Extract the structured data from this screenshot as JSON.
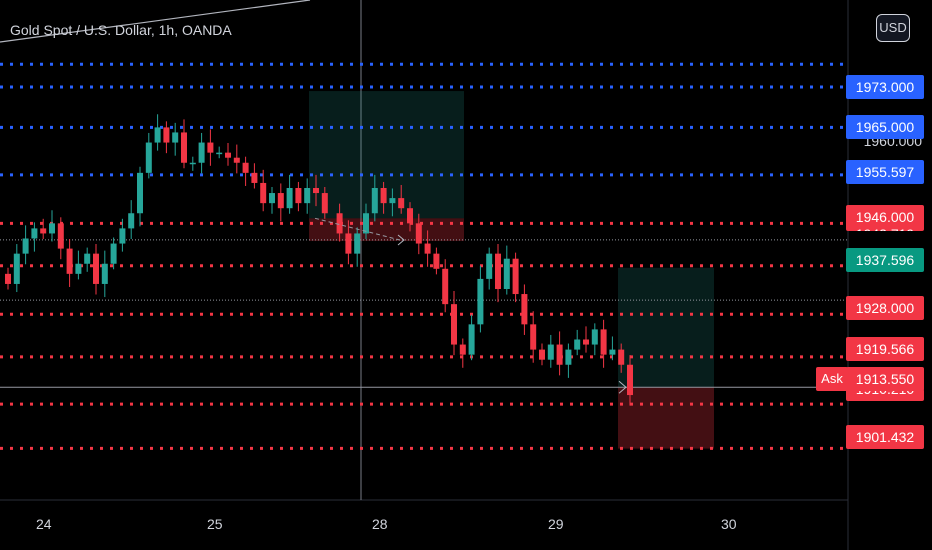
{
  "header": {
    "title": "Gold Spot / U.S. Dollar, 1h, OANDA",
    "currency": "USD"
  },
  "colors": {
    "up": "#26a69a",
    "down": "#f23645",
    "blue": "#2962ff",
    "red": "#f23645",
    "green": "#089981"
  },
  "chart_data": {
    "type": "candlestick",
    "title": "Gold Spot / U.S. Dollar, 1h, OANDA",
    "x_ticks": [
      "24",
      "25",
      "28",
      "29",
      "30"
    ],
    "blue_levels": [
      "1973.000",
      "1965.000",
      "1955.597"
    ],
    "red_levels": [
      "1946.000",
      "1928.000",
      "1919.566",
      "1901.432"
    ],
    "current": {
      "price": "1937.596"
    },
    "ask": {
      "label": "Ask",
      "price": "1913.550"
    },
    "axis_plain_labels": [
      "1960.000"
    ],
    "partial_labels": [
      "1942.719",
      "1910.210"
    ],
    "close_path": [
      1934,
      1940,
      1943,
      1945,
      1944,
      1946,
      1941,
      1936,
      1938,
      1940,
      1934,
      1938,
      1942,
      1945,
      1948,
      1956,
      1962,
      1965,
      1962,
      1964,
      1958,
      1958,
      1962,
      1960,
      1960,
      1959,
      1958,
      1956,
      1954,
      1950,
      1952,
      1949,
      1953,
      1950,
      1953,
      1952,
      1948,
      1944,
      1940,
      1944,
      1948,
      1953,
      1950,
      1951,
      1949,
      1946,
      1942,
      1940,
      1937,
      1930,
      1922,
      1920,
      1926,
      1935,
      1940,
      1933,
      1939,
      1932,
      1926,
      1921,
      1919,
      1922,
      1918,
      1921,
      1923,
      1922,
      1925,
      1920,
      1921,
      1918,
      1912
    ]
  }
}
